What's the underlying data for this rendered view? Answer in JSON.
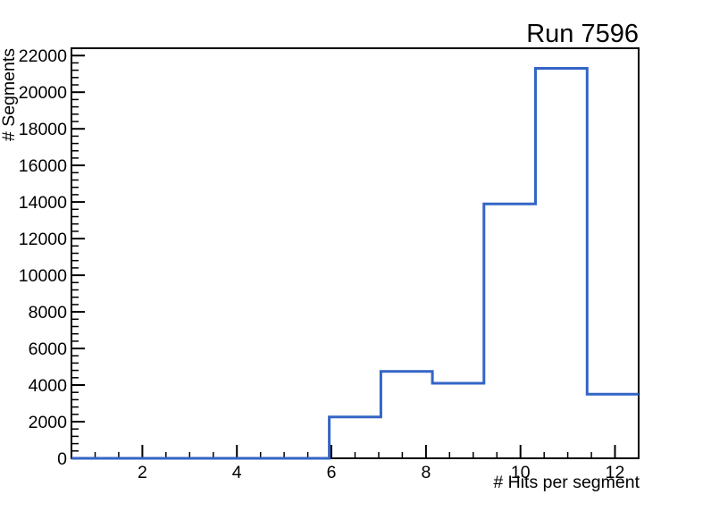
{
  "canvas": {
    "background": "#ffffff"
  },
  "chart_data": {
    "type": "bar",
    "style": "root-step-histogram",
    "title": "Run 7596",
    "xlabel": "# Hits per segment",
    "ylabel": "# Segments",
    "xlim": [
      0.5,
      12.5
    ],
    "ylim": [
      0,
      22400
    ],
    "grid": false,
    "bin_edges": [
      0.5,
      1.5909,
      2.6818,
      3.7727,
      4.8636,
      5.9545,
      7.0455,
      8.1364,
      9.2273,
      10.3182,
      11.4091,
      12.5
    ],
    "values": [
      0,
      0,
      0,
      0,
      0,
      2260,
      4750,
      4100,
      13900,
      21300,
      3500
    ],
    "x_major_ticks": [
      2,
      4,
      6,
      8,
      10,
      12
    ],
    "x_tick_labels": [
      "2",
      "4",
      "6",
      "8",
      "10",
      "12"
    ],
    "x_minor_step": 0.5,
    "y_major_step": 2000,
    "y_minor_step": 400,
    "y_tick_labels": [
      "0",
      "2000",
      "4000",
      "6000",
      "8000",
      "10000",
      "12000",
      "14000",
      "16000",
      "18000",
      "20000",
      "22000"
    ],
    "line_color": "#3465c5",
    "axis_color": "#000000",
    "text_color": "#000000"
  }
}
